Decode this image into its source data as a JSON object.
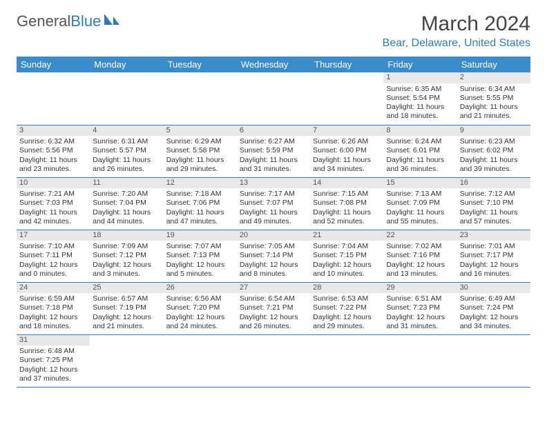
{
  "logo": {
    "text1": "General",
    "text2": "Blue"
  },
  "title": "March 2024",
  "location": "Bear, Delaware, United States",
  "colors": {
    "header_bg": "#3a8bc9",
    "accent": "#2f7bbf",
    "daynum_bg": "#e8e8e8",
    "text": "#333333"
  },
  "daynames": [
    "Sunday",
    "Monday",
    "Tuesday",
    "Wednesday",
    "Thursday",
    "Friday",
    "Saturday"
  ],
  "weeks": [
    [
      null,
      null,
      null,
      null,
      null,
      {
        "n": "1",
        "sr": "6:35 AM",
        "ss": "5:54 PM",
        "dl": "11 hours and 18 minutes."
      },
      {
        "n": "2",
        "sr": "6:34 AM",
        "ss": "5:55 PM",
        "dl": "11 hours and 21 minutes."
      }
    ],
    [
      {
        "n": "3",
        "sr": "6:32 AM",
        "ss": "5:56 PM",
        "dl": "11 hours and 23 minutes."
      },
      {
        "n": "4",
        "sr": "6:31 AM",
        "ss": "5:57 PM",
        "dl": "11 hours and 26 minutes."
      },
      {
        "n": "5",
        "sr": "6:29 AM",
        "ss": "5:58 PM",
        "dl": "11 hours and 29 minutes."
      },
      {
        "n": "6",
        "sr": "6:27 AM",
        "ss": "5:59 PM",
        "dl": "11 hours and 31 minutes."
      },
      {
        "n": "7",
        "sr": "6:26 AM",
        "ss": "6:00 PM",
        "dl": "11 hours and 34 minutes."
      },
      {
        "n": "8",
        "sr": "6:24 AM",
        "ss": "6:01 PM",
        "dl": "11 hours and 36 minutes."
      },
      {
        "n": "9",
        "sr": "6:23 AM",
        "ss": "6:02 PM",
        "dl": "11 hours and 39 minutes."
      }
    ],
    [
      {
        "n": "10",
        "sr": "7:21 AM",
        "ss": "7:03 PM",
        "dl": "11 hours and 42 minutes."
      },
      {
        "n": "11",
        "sr": "7:20 AM",
        "ss": "7:04 PM",
        "dl": "11 hours and 44 minutes."
      },
      {
        "n": "12",
        "sr": "7:18 AM",
        "ss": "7:06 PM",
        "dl": "11 hours and 47 minutes."
      },
      {
        "n": "13",
        "sr": "7:17 AM",
        "ss": "7:07 PM",
        "dl": "11 hours and 49 minutes."
      },
      {
        "n": "14",
        "sr": "7:15 AM",
        "ss": "7:08 PM",
        "dl": "11 hours and 52 minutes."
      },
      {
        "n": "15",
        "sr": "7:13 AM",
        "ss": "7:09 PM",
        "dl": "11 hours and 55 minutes."
      },
      {
        "n": "16",
        "sr": "7:12 AM",
        "ss": "7:10 PM",
        "dl": "11 hours and 57 minutes."
      }
    ],
    [
      {
        "n": "17",
        "sr": "7:10 AM",
        "ss": "7:11 PM",
        "dl": "12 hours and 0 minutes."
      },
      {
        "n": "18",
        "sr": "7:09 AM",
        "ss": "7:12 PM",
        "dl": "12 hours and 3 minutes."
      },
      {
        "n": "19",
        "sr": "7:07 AM",
        "ss": "7:13 PM",
        "dl": "12 hours and 5 minutes."
      },
      {
        "n": "20",
        "sr": "7:05 AM",
        "ss": "7:14 PM",
        "dl": "12 hours and 8 minutes."
      },
      {
        "n": "21",
        "sr": "7:04 AM",
        "ss": "7:15 PM",
        "dl": "12 hours and 10 minutes."
      },
      {
        "n": "22",
        "sr": "7:02 AM",
        "ss": "7:16 PM",
        "dl": "12 hours and 13 minutes."
      },
      {
        "n": "23",
        "sr": "7:01 AM",
        "ss": "7:17 PM",
        "dl": "12 hours and 16 minutes."
      }
    ],
    [
      {
        "n": "24",
        "sr": "6:59 AM",
        "ss": "7:18 PM",
        "dl": "12 hours and 18 minutes."
      },
      {
        "n": "25",
        "sr": "6:57 AM",
        "ss": "7:19 PM",
        "dl": "12 hours and 21 minutes."
      },
      {
        "n": "26",
        "sr": "6:56 AM",
        "ss": "7:20 PM",
        "dl": "12 hours and 24 minutes."
      },
      {
        "n": "27",
        "sr": "6:54 AM",
        "ss": "7:21 PM",
        "dl": "12 hours and 26 minutes."
      },
      {
        "n": "28",
        "sr": "6:53 AM",
        "ss": "7:22 PM",
        "dl": "12 hours and 29 minutes."
      },
      {
        "n": "29",
        "sr": "6:51 AM",
        "ss": "7:23 PM",
        "dl": "12 hours and 31 minutes."
      },
      {
        "n": "30",
        "sr": "6:49 AM",
        "ss": "7:24 PM",
        "dl": "12 hours and 34 minutes."
      }
    ],
    [
      {
        "n": "31",
        "sr": "6:48 AM",
        "ss": "7:25 PM",
        "dl": "12 hours and 37 minutes."
      },
      null,
      null,
      null,
      null,
      null,
      null
    ]
  ],
  "labels": {
    "sunrise": "Sunrise:",
    "sunset": "Sunset:",
    "daylight": "Daylight:"
  }
}
